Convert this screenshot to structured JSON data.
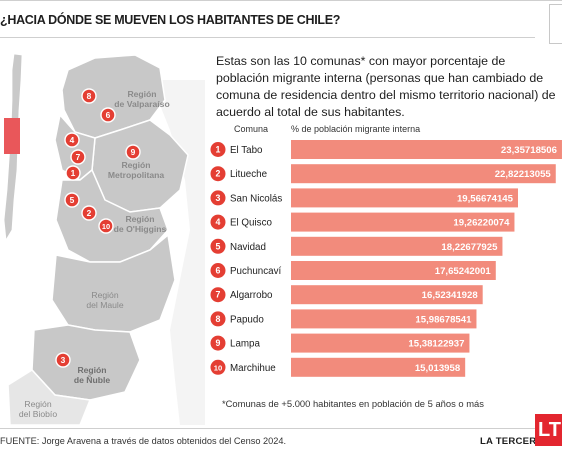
{
  "header": {
    "title": "¿HACIA DÓNDE SE MUEVEN LOS HABITANTES DE CHILE?"
  },
  "intro": "Estas son las 10 comunas* con mayor porcentaje de población migrante interna (personas que han cambiado de comuna de residencia dentro del mismo territorio nacional) de acuerdo al total de sus habitantes.",
  "map": {
    "regions": [
      {
        "lines": [
          "Región",
          "de Valparaíso"
        ]
      },
      {
        "lines": [
          "Región",
          "Metropolitana"
        ]
      },
      {
        "lines": [
          "Región",
          "de O'Higgins"
        ]
      },
      {
        "lines": [
          "Región",
          "del Maule"
        ]
      },
      {
        "lines": [
          "Región",
          "de Ñuble"
        ]
      },
      {
        "lines": [
          "Región",
          "del Biobío"
        ]
      }
    ],
    "markers": [
      "1",
      "2",
      "3",
      "4",
      "5",
      "6",
      "7",
      "8",
      "9",
      "10"
    ]
  },
  "chart_data": {
    "type": "bar",
    "orientation": "horizontal",
    "column_headers": [
      "Comuna",
      "% de población migrante interna"
    ],
    "categories": [
      "El Tabo",
      "Litueche",
      "San Nicolás",
      "El Quisco",
      "Navidad",
      "Puchuncaví",
      "Algarrobo",
      "Papudo",
      "Lampa",
      "Marchihue"
    ],
    "ranks": [
      "1",
      "2",
      "3",
      "4",
      "5",
      "6",
      "7",
      "8",
      "9",
      "10"
    ],
    "values": [
      23.35718506,
      22.82213055,
      19.56674145,
      19.26220074,
      18.22677925,
      17.65242001,
      16.52341928,
      15.98678541,
      15.38122937,
      15.013958
    ],
    "value_labels": [
      "23,35718506",
      "22,82213055",
      "19,56674145",
      "19,26220074",
      "18,22677925",
      "17,65242001",
      "16,52341928",
      "15,98678541",
      "15,38122937",
      "15,013958"
    ],
    "bar_color": "#f28b7c",
    "marker_color": "#e43e33",
    "xlim": [
      0,
      23.36
    ]
  },
  "footnote": "*Comunas de +5.000 habitantes en población de 5 años o más",
  "footer": {
    "source": "FUENTE: Jorge Aravena a través de datos obtenidos del Censo 2024.",
    "brand": "LA TERCERA",
    "logo": "LT"
  }
}
